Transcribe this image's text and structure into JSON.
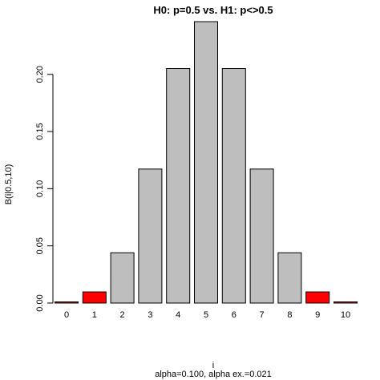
{
  "chart_data": {
    "type": "bar",
    "title": "H0: p=0.5 vs. H1: p<>0.5",
    "xlabel": "i",
    "ylabel": "B(i|0.5,10)",
    "subtitle": "alpha=0.100, alpha  ex.=0.021",
    "categories": [
      "0",
      "1",
      "2",
      "3",
      "4",
      "5",
      "6",
      "7",
      "8",
      "9",
      "10"
    ],
    "values": [
      0.000977,
      0.009766,
      0.043945,
      0.117188,
      0.205078,
      0.246094,
      0.205078,
      0.117188,
      0.043945,
      0.009766,
      0.000977
    ],
    "bar_colors": [
      "#ff0000",
      "#ff0000",
      "#bebebe",
      "#bebebe",
      "#bebebe",
      "#bebebe",
      "#bebebe",
      "#bebebe",
      "#bebebe",
      "#ff0000",
      "#ff0000"
    ],
    "yticks": [
      "0.00",
      "0.05",
      "0.10",
      "0.15",
      "0.20"
    ],
    "ytick_values": [
      0,
      0.05,
      0.1,
      0.15,
      0.2
    ],
    "ylim": [
      0,
      0.246094
    ],
    "grid": false,
    "legend": "none",
    "colors": {
      "rejection": "#ff0000",
      "acceptance": "#bebebe",
      "outline": "#000000"
    }
  }
}
